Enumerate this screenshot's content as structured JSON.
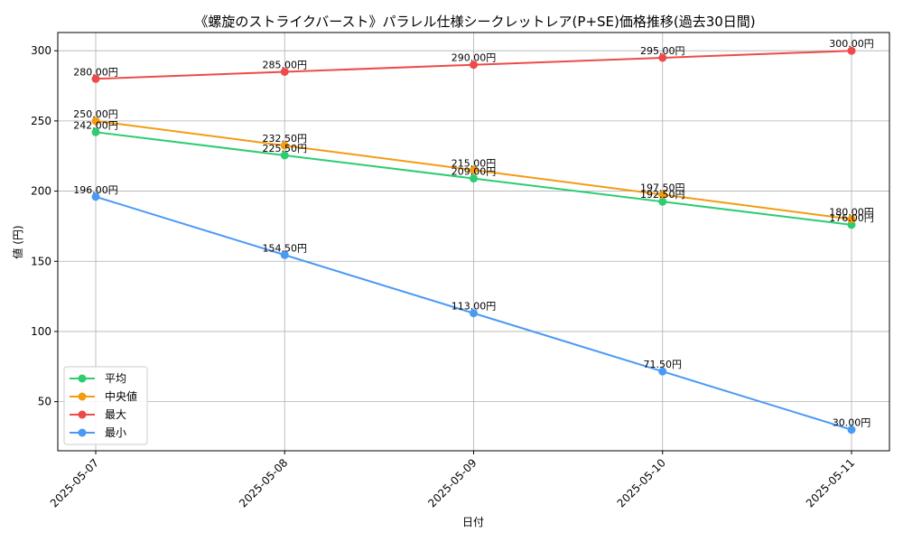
{
  "chart_data": {
    "type": "line",
    "title": "《螺旋のストライクバースト》パラレル仕様シークレットレア(P+SE)価格推移(過去30日間)",
    "xlabel": "日付",
    "ylabel": "値 (円)",
    "categories": [
      "2025-05-07",
      "2025-05-08",
      "2025-05-09",
      "2025-05-10",
      "2025-05-11"
    ],
    "ylim": [
      15,
      313
    ],
    "yticks": [
      50,
      100,
      150,
      200,
      250,
      300
    ],
    "grid": true,
    "legend_position": "lower-left",
    "value_suffix": "円",
    "series": [
      {
        "name": "平均",
        "color": "#2ecc71",
        "values": [
          242.0,
          225.5,
          209.0,
          192.5,
          176.0
        ],
        "labels": [
          "242.00円",
          "225.50円",
          "209.00円",
          "192.50円",
          "176.00円"
        ]
      },
      {
        "name": "中央値",
        "color": "#f39c12",
        "values": [
          250.0,
          232.5,
          215.0,
          197.5,
          180.0
        ],
        "labels": [
          "250.00円",
          "232.50円",
          "215.00円",
          "197.50円",
          "180.00円"
        ]
      },
      {
        "name": "最大",
        "color": "#ef4a4a",
        "values": [
          280.0,
          285.0,
          290.0,
          295.0,
          300.0
        ],
        "labels": [
          "280.00円",
          "285.00円",
          "290.00円",
          "295.00円",
          "300.00円"
        ]
      },
      {
        "name": "最小",
        "color": "#4a9af5",
        "values": [
          196.0,
          154.5,
          113.0,
          71.5,
          30.0
        ],
        "labels": [
          "196.00円",
          "154.50円",
          "113.00円",
          "71.50円",
          "30.00円"
        ]
      }
    ]
  }
}
